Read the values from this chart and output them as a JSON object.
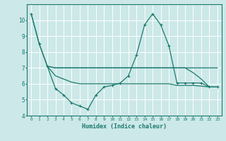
{
  "bg_color": "#cce8e8",
  "grid_color": "#ffffff",
  "line_color": "#1a7a6e",
  "xlabel": "Humidex (Indice chaleur)",
  "xlim": [
    -0.5,
    23.5
  ],
  "ylim": [
    4,
    11
  ],
  "yticks": [
    4,
    5,
    6,
    7,
    8,
    9,
    10
  ],
  "xticks": [
    0,
    1,
    2,
    3,
    4,
    5,
    6,
    7,
    8,
    9,
    10,
    11,
    12,
    13,
    14,
    15,
    16,
    17,
    18,
    19,
    20,
    21,
    22,
    23
  ],
  "line1_x": [
    0,
    1,
    2
  ],
  "line1_y": [
    10.4,
    8.5,
    7.1
  ],
  "line2_x": [
    2,
    3,
    4,
    5,
    6,
    7,
    8,
    9,
    10,
    11,
    12,
    13,
    14,
    15,
    16,
    17,
    18,
    19,
    20,
    21,
    22,
    23
  ],
  "line2_y": [
    7.1,
    7.0,
    7.0,
    7.0,
    7.0,
    7.0,
    7.0,
    7.0,
    7.0,
    7.0,
    7.0,
    7.0,
    7.0,
    7.0,
    7.0,
    7.0,
    7.0,
    7.0,
    7.0,
    7.0,
    7.0,
    7.0
  ],
  "line3_x": [
    0,
    1,
    2,
    3,
    4,
    5,
    6,
    7,
    8,
    9,
    10,
    11,
    12,
    13,
    14,
    15,
    16,
    17,
    18,
    19,
    20,
    21,
    22,
    23
  ],
  "line3_y": [
    10.4,
    8.5,
    7.1,
    5.7,
    5.3,
    4.8,
    4.6,
    4.4,
    5.3,
    5.8,
    5.9,
    6.05,
    6.5,
    7.8,
    9.7,
    10.4,
    9.7,
    8.4,
    6.05,
    6.05,
    6.05,
    6.05,
    5.8,
    5.8
  ],
  "line4_x": [
    2,
    3,
    4,
    5,
    6,
    7,
    8,
    9,
    10,
    11,
    12,
    13,
    14,
    15,
    16,
    17,
    18,
    19,
    20,
    21,
    22,
    23
  ],
  "line4_y": [
    7.1,
    6.5,
    6.3,
    6.1,
    6.0,
    6.0,
    6.0,
    6.0,
    6.0,
    6.0,
    6.0,
    6.0,
    6.0,
    6.0,
    6.0,
    6.0,
    5.9,
    5.9,
    5.9,
    5.85,
    5.8,
    5.8
  ],
  "line5_x": [
    2,
    3,
    4,
    5,
    6,
    7,
    8,
    9,
    10,
    11,
    12,
    13,
    14,
    15,
    16,
    17,
    18,
    19,
    20,
    21,
    22,
    23
  ],
  "line5_y": [
    7.1,
    7.0,
    7.0,
    7.0,
    7.0,
    7.0,
    7.0,
    7.0,
    7.0,
    7.0,
    7.0,
    7.0,
    7.0,
    7.0,
    7.0,
    7.0,
    7.0,
    7.0,
    6.7,
    6.3,
    5.8,
    5.8
  ]
}
